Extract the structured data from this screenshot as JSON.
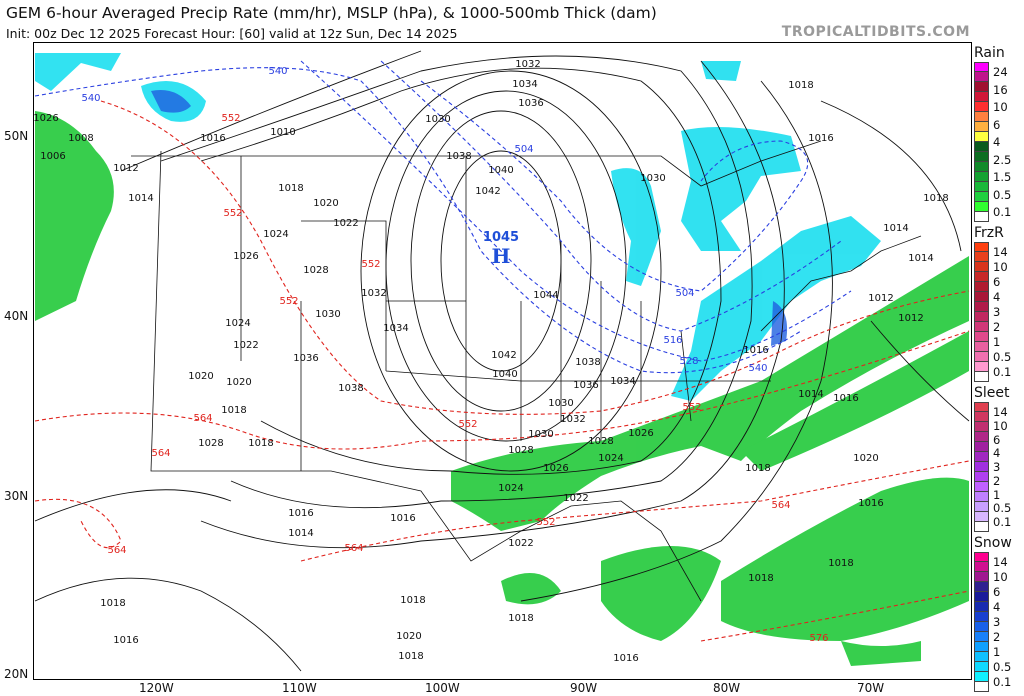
{
  "header": {
    "title": "GEM 6-hour Averaged Precip Rate (mm/hr), MSLP (hPa), & 1000-500mb Thick (dam)",
    "subtitle": "Init: 00z Dec 12 2025   Forecast Hour: [60]   valid at 12z Sun, Dec 14 2025",
    "site": "TROPICALTIDBITS.COM"
  },
  "axes": {
    "lat": [
      "50N",
      "40N",
      "30N",
      "20N"
    ],
    "lon": [
      "120W",
      "110W",
      "100W",
      "90W",
      "80W",
      "70W"
    ]
  },
  "high_center": {
    "pressure": "1045",
    "label": "H",
    "color": "#1f4fd8"
  },
  "isobar_labels": [
    "1032",
    "1034",
    "1036",
    "1030",
    "1038",
    "1040",
    "1042",
    "1044",
    "1042",
    "1040",
    "1038",
    "1036",
    "1034",
    "1032",
    "1030",
    "1028",
    "1026",
    "1024",
    "1022",
    "1020",
    "1018",
    "1016",
    "1014",
    "1012",
    "1010",
    "1008",
    "1006",
    "1018",
    "1016",
    "1018",
    "1020",
    "1022",
    "1024",
    "1026",
    "1028",
    "1030",
    "1032",
    "1034",
    "1036",
    "1038",
    "1028",
    "1026",
    "1024",
    "1022",
    "1020",
    "1018",
    "1016",
    "1014",
    "1016",
    "1018",
    "1018",
    "1020",
    "1018",
    "1016",
    "1018",
    "1016",
    "1014",
    "1012",
    "1016",
    "1018",
    "1014",
    "1016",
    "1018",
    "1020",
    "1022",
    "1024",
    "1026",
    "1028",
    "1030",
    "1030",
    "1018",
    "1016",
    "1018",
    "1014",
    "1012"
  ],
  "thickness_labels": [
    "540",
    "540",
    "552",
    "552",
    "552",
    "552",
    "552",
    "564",
    "564",
    "564",
    "564",
    "552",
    "504",
    "504",
    "516",
    "528",
    "540",
    "552",
    "564",
    "576"
  ],
  "colors": {
    "thickness": "#e0241e",
    "thickness_blue": "#2a3fe0",
    "isobar": "#111111",
    "rain": "#22c93a",
    "snow": "#27e0f0"
  },
  "legend": [
    {
      "title": "Rain",
      "levels": [
        "24",
        "16",
        "10",
        "6",
        "4",
        "2.5",
        "1.5",
        "0.5",
        "0.1"
      ],
      "colors": [
        "#ff00ff",
        "#c0148c",
        "#a01030",
        "#d01838",
        "#ff3030",
        "#ff8040",
        "#ffb040",
        "#ffff40",
        "#0a5a1e",
        "#0d6e22",
        "#118a2a",
        "#15a232",
        "#1ab83a",
        "#20d040",
        "#30ff30",
        "#ffffff"
      ]
    },
    {
      "title": "FrzR",
      "levels": [
        "14",
        "10",
        "6",
        "4",
        "3",
        "2",
        "1",
        "0.5",
        "0.1"
      ],
      "colors": [
        "#ff4010",
        "#e8401c",
        "#d8341c",
        "#c82828",
        "#b01c30",
        "#a81838",
        "#b01c4a",
        "#c02860",
        "#d03878",
        "#e04a8c",
        "#e860a0",
        "#f070b0",
        "#ff9ad0",
        "#ffffff"
      ]
    },
    {
      "title": "Sleet",
      "levels": [
        "14",
        "10",
        "6",
        "4",
        "3",
        "2",
        "1",
        "0.5",
        "0.1"
      ],
      "colors": [
        "#e04050",
        "#d03860",
        "#c03070",
        "#b02888",
        "#a020a0",
        "#a028c0",
        "#a030e0",
        "#b040f0",
        "#c060ff",
        "#c080ff",
        "#c8a0ff",
        "#d8b8ff",
        "#ffffff"
      ]
    },
    {
      "title": "Snow",
      "levels": [
        "14",
        "10",
        "6",
        "4",
        "3",
        "2",
        "1",
        "0.5",
        "0.1"
      ],
      "colors": [
        "#ff0090",
        "#d01090",
        "#a01890",
        "#302090",
        "#1a1a9a",
        "#1a2cb0",
        "#1a40d0",
        "#1a60e8",
        "#1a80f8",
        "#10a0ff",
        "#10c0ff",
        "#10d8ff",
        "#10f0ff",
        "#ffffff"
      ]
    }
  ]
}
